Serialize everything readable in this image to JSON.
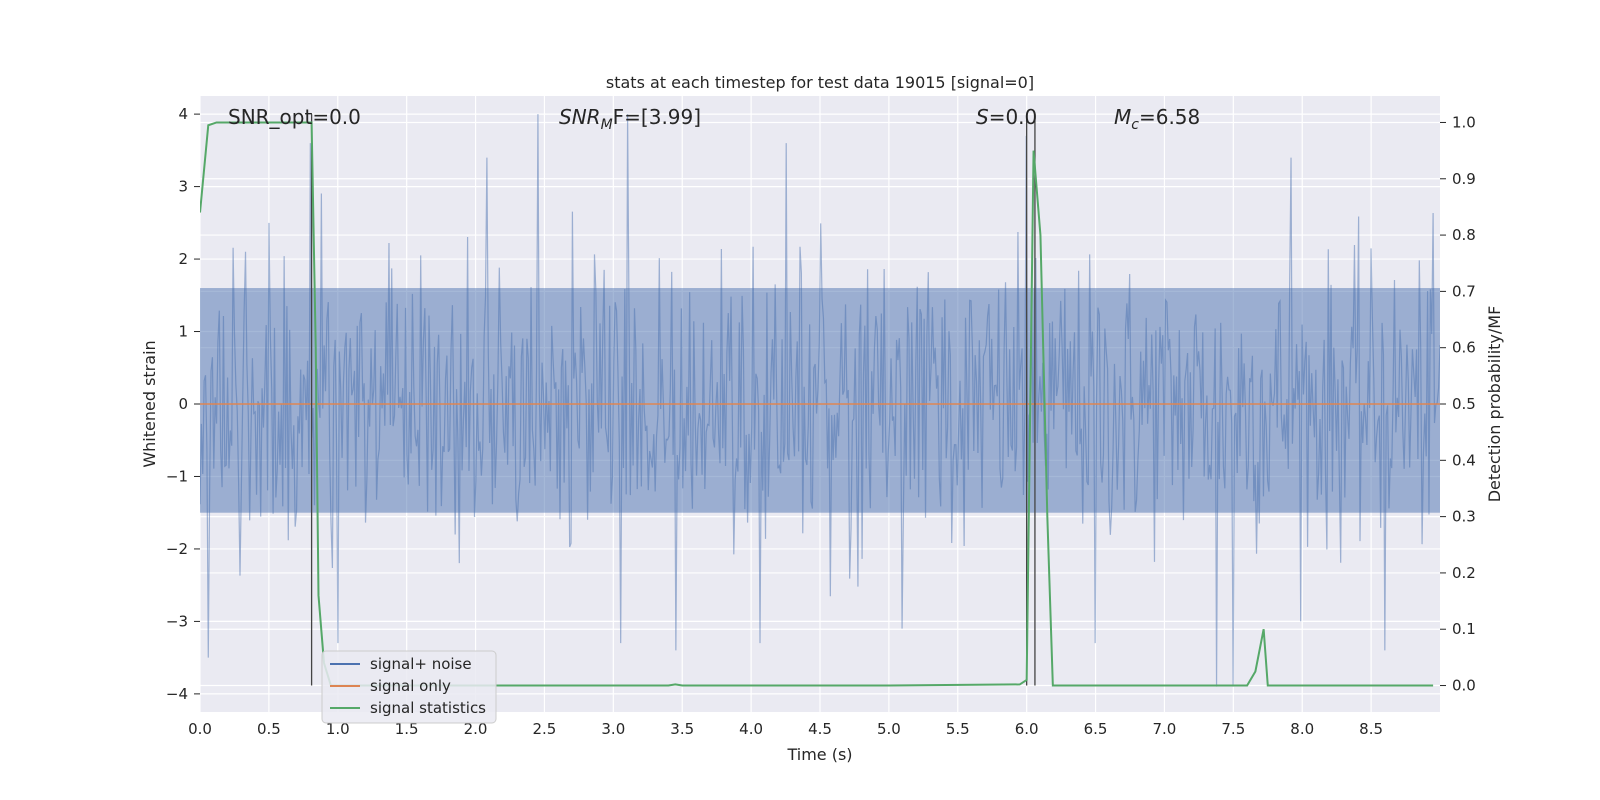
{
  "chart_data": {
    "type": "line",
    "title": "stats at each timestep for test data 19015 [signal=0]",
    "xlabel": "Time (s)",
    "ylabel": "Whitened strain",
    "y2label": "Detection probability/MF",
    "xlim": [
      0.0,
      9.0
    ],
    "ylim": [
      -4.25,
      4.25
    ],
    "y2lim": [
      -0.047,
      1.047
    ],
    "x_ticks": [
      "0.0",
      "0.5",
      "1.0",
      "1.5",
      "2.0",
      "2.5",
      "3.0",
      "3.5",
      "4.0",
      "4.5",
      "5.0",
      "5.5",
      "6.0",
      "6.5",
      "7.0",
      "7.5",
      "8.0",
      "8.5"
    ],
    "y_ticks": [
      "4",
      "3",
      "2",
      "1",
      "0",
      "−1",
      "−2",
      "−3",
      "−4"
    ],
    "y2_ticks": [
      "1.0",
      "0.9",
      "0.8",
      "0.7",
      "0.6",
      "0.5",
      "0.4",
      "0.3",
      "0.2",
      "0.1",
      "0.0"
    ],
    "grid": true,
    "legend_position": "lower-left",
    "annotations": {
      "snr_opt": "SNR_opt=0.0",
      "snr_mf_base": "SNR",
      "snr_mf_sub": "M",
      "snr_mf_rest": "F=[3.99]",
      "s_var": "S",
      "s_rest": "=0.0",
      "mc_var": "M",
      "mc_sub": "c",
      "mc_rest": "=6.58"
    },
    "series": [
      {
        "name": "signal+ noise",
        "color": "#4c72b0",
        "axis": "left",
        "style": "dense noise trace",
        "duration_s": 9.0,
        "samples_drawn": 900,
        "typical_range": [
          -1.5,
          1.6
        ],
        "peak_values": [
          {
            "x": 0.06,
            "y": -3.5
          },
          {
            "x": 0.5,
            "y": 2.5
          },
          {
            "x": 0.8,
            "y": 3.6
          },
          {
            "x": 1.0,
            "y": -3.3
          },
          {
            "x": 2.08,
            "y": 3.4
          },
          {
            "x": 2.45,
            "y": 4.0
          },
          {
            "x": 3.1,
            "y": 4.0
          },
          {
            "x": 3.05,
            "y": -3.3
          },
          {
            "x": 3.45,
            "y": -3.4
          },
          {
            "x": 4.25,
            "y": 3.6
          },
          {
            "x": 4.06,
            "y": -3.3
          },
          {
            "x": 5.1,
            "y": -3.1
          },
          {
            "x": 6.0,
            "y": 3.7
          },
          {
            "x": 6.5,
            "y": -3.3
          },
          {
            "x": 7.38,
            "y": -3.9
          },
          {
            "x": 7.5,
            "y": -3.9
          },
          {
            "x": 7.92,
            "y": 3.4
          },
          {
            "x": 8.6,
            "y": -3.4
          }
        ]
      },
      {
        "name": "signal only",
        "color": "#dd8452",
        "axis": "left",
        "x": [
          0.0,
          9.0
        ],
        "y": [
          0.0,
          0.0
        ]
      },
      {
        "name": "signal statistics",
        "color": "#55a868",
        "axis": "right",
        "x": [
          0.0,
          0.06,
          0.12,
          0.2,
          0.3,
          0.78,
          0.81,
          0.84,
          0.86,
          0.9,
          0.95,
          1.5,
          2.0,
          3.0,
          3.4,
          3.45,
          3.5,
          4.0,
          5.0,
          5.95,
          6.0,
          6.05,
          6.1,
          6.15,
          6.19,
          6.5,
          7.0,
          7.5,
          7.6,
          7.66,
          7.72,
          7.75,
          7.8,
          8.0,
          8.5,
          8.95
        ],
        "y": [
          0.84,
          0.995,
          1.0,
          1.0,
          1.0,
          1.0,
          1.0,
          0.6,
          0.16,
          0.04,
          0.0,
          0.0,
          0.0,
          0.0,
          0.0,
          0.002,
          0.0,
          0.0,
          0.0,
          0.002,
          0.01,
          0.95,
          0.8,
          0.3,
          0.0,
          0.0,
          0.0,
          0.0,
          0.0,
          0.025,
          0.1,
          0.0,
          0.0,
          0.0,
          0.0,
          0.0
        ]
      }
    ],
    "vertical_lines": {
      "color": "#444444",
      "x": [
        0.81,
        6.0,
        6.06
      ]
    }
  }
}
